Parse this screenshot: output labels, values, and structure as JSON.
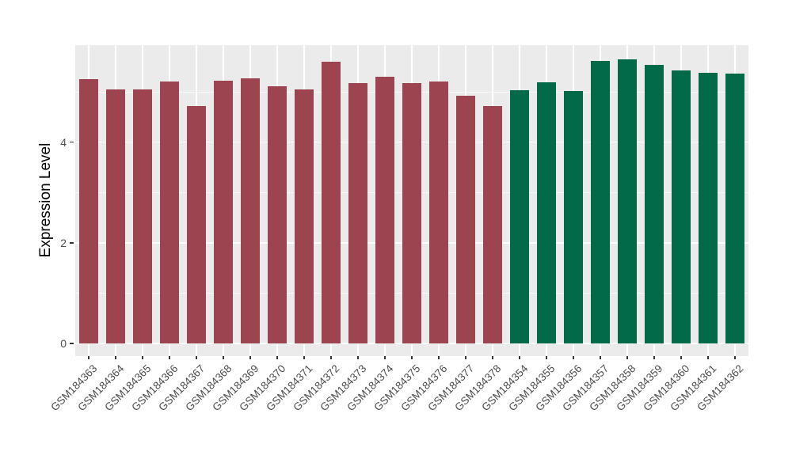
{
  "chart_data": {
    "type": "bar",
    "title": "",
    "xlabel": "",
    "ylabel": "Expression Level",
    "ylim": [
      0,
      5.9
    ],
    "yticks": [
      0,
      2,
      4
    ],
    "yminor": [
      1,
      3,
      5
    ],
    "grid": "on",
    "legend_position": "none",
    "panel_background": "#EBEBEB",
    "gridline_color": "#FFFFFF",
    "axis_text_color": "#4D4D4D",
    "color_groups": {
      "maroon": "#9C4450",
      "green": "#036A49"
    },
    "bars": [
      {
        "label": "GSM184363",
        "value": 5.25,
        "group": "maroon"
      },
      {
        "label": "GSM184364",
        "value": 5.04,
        "group": "maroon"
      },
      {
        "label": "GSM184365",
        "value": 5.04,
        "group": "maroon"
      },
      {
        "label": "GSM184366",
        "value": 5.2,
        "group": "maroon"
      },
      {
        "label": "GSM184367",
        "value": 4.72,
        "group": "maroon"
      },
      {
        "label": "GSM184368",
        "value": 5.22,
        "group": "maroon"
      },
      {
        "label": "GSM184369",
        "value": 5.27,
        "group": "maroon"
      },
      {
        "label": "GSM184370",
        "value": 5.11,
        "group": "maroon"
      },
      {
        "label": "GSM184371",
        "value": 5.05,
        "group": "maroon"
      },
      {
        "label": "GSM184372",
        "value": 5.6,
        "group": "maroon"
      },
      {
        "label": "GSM184373",
        "value": 5.17,
        "group": "maroon"
      },
      {
        "label": "GSM184374",
        "value": 5.3,
        "group": "maroon"
      },
      {
        "label": "GSM184375",
        "value": 5.17,
        "group": "maroon"
      },
      {
        "label": "GSM184376",
        "value": 5.2,
        "group": "maroon"
      },
      {
        "label": "GSM184377",
        "value": 4.92,
        "group": "maroon"
      },
      {
        "label": "GSM184378",
        "value": 4.72,
        "group": "maroon"
      },
      {
        "label": "GSM184354",
        "value": 5.03,
        "group": "green"
      },
      {
        "label": "GSM184355",
        "value": 5.19,
        "group": "green"
      },
      {
        "label": "GSM184356",
        "value": 5.02,
        "group": "green"
      },
      {
        "label": "GSM184357",
        "value": 5.61,
        "group": "green"
      },
      {
        "label": "GSM184358",
        "value": 5.65,
        "group": "green"
      },
      {
        "label": "GSM184359",
        "value": 5.53,
        "group": "green"
      },
      {
        "label": "GSM184360",
        "value": 5.42,
        "group": "green"
      },
      {
        "label": "GSM184361",
        "value": 5.38,
        "group": "green"
      },
      {
        "label": "GSM184362",
        "value": 5.36,
        "group": "green"
      }
    ]
  }
}
